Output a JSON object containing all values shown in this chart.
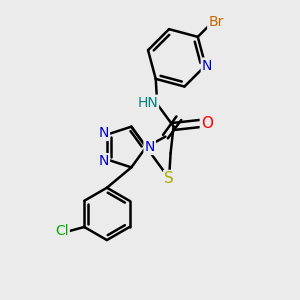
{
  "background_color": "#ebebeb",
  "bond_color": "#000000",
  "bond_width": 1.8,
  "atoms": {
    "Br": {
      "color": "#cc6600"
    },
    "N": {
      "color": "#0000cc"
    },
    "O": {
      "color": "#ff0000"
    },
    "S": {
      "color": "#aaaa00"
    },
    "Cl": {
      "color": "#00aa00"
    },
    "H": {
      "color": "#008080"
    }
  },
  "figsize": [
    3.0,
    3.0
  ],
  "dpi": 100
}
